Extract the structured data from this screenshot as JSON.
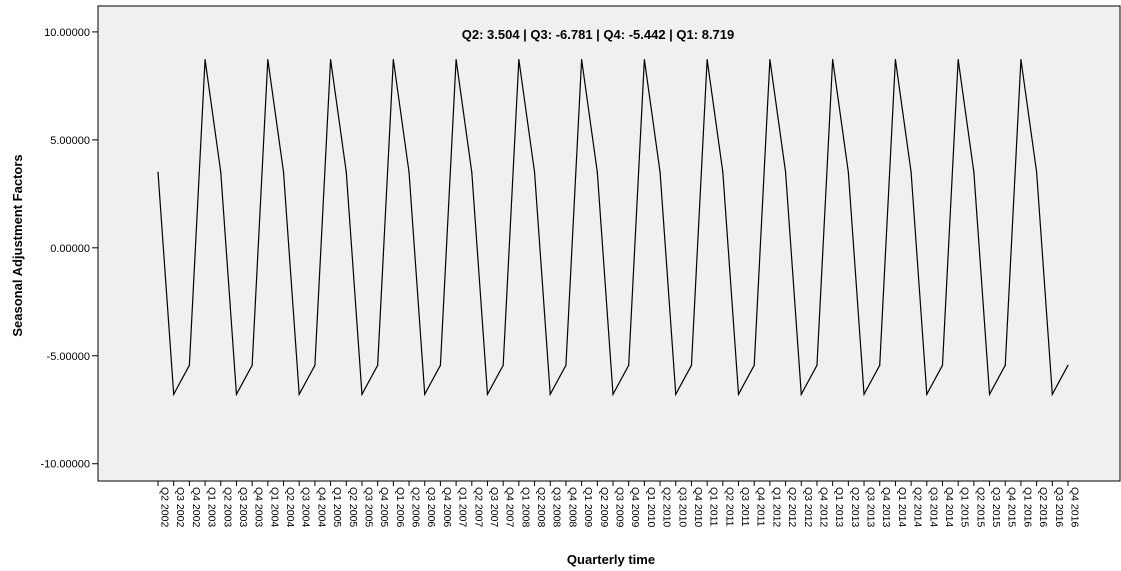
{
  "chart_data": {
    "type": "line",
    "title": "",
    "xlabel": "Quarterly time",
    "ylabel": "Seasonal Adjustment Factors",
    "annotation": "Q2: 3.504  |  Q3: -6.781  |  Q4: -5.442  |  Q1: 8.719",
    "ylim": [
      -10.8,
      11.2
    ],
    "y_ticks": [
      10.0,
      5.0,
      0.0,
      -5.0,
      -10.0
    ],
    "y_tick_labels": [
      "10.00000",
      "5.00000",
      "0.00000",
      "-5.00000",
      "-10.00000"
    ],
    "grid": false,
    "colors": {
      "plot_bg": "#f0f0f0",
      "line": "#000000",
      "axis": "#000000"
    },
    "categories": [
      "Q2 2002",
      "Q3 2002",
      "Q4 2002",
      "Q1 2003",
      "Q2 2003",
      "Q3 2003",
      "Q4 2003",
      "Q1 2004",
      "Q2 2004",
      "Q3 2004",
      "Q4 2004",
      "Q1 2005",
      "Q2 2005",
      "Q3 2005",
      "Q4 2005",
      "Q1 2006",
      "Q2 2006",
      "Q3 2006",
      "Q4 2006",
      "Q1 2007",
      "Q2 2007",
      "Q3 2007",
      "Q4 2007",
      "Q1 2008",
      "Q2 2008",
      "Q3 2008",
      "Q4 2008",
      "Q1 2009",
      "Q2 2009",
      "Q3 2009",
      "Q4 2009",
      "Q1 2010",
      "Q2 2010",
      "Q3 2010",
      "Q4 2010",
      "Q1 2011",
      "Q2 2011",
      "Q3 2011",
      "Q4 2011",
      "Q1 2012",
      "Q2 2012",
      "Q3 2012",
      "Q4 2012",
      "Q1 2013",
      "Q2 2013",
      "Q3 2013",
      "Q4 2013",
      "Q1 2014",
      "Q2 2014",
      "Q3 2014",
      "Q4 2014",
      "Q1 2015",
      "Q2 2015",
      "Q3 2015",
      "Q4 2015",
      "Q1 2016",
      "Q2 2016",
      "Q3 2016",
      "Q4 2016"
    ],
    "series": [
      {
        "values": [
          3.504,
          -6.781,
          -5.442,
          8.719,
          3.504,
          -6.781,
          -5.442,
          8.719,
          3.504,
          -6.781,
          -5.442,
          8.719,
          3.504,
          -6.781,
          -5.442,
          8.719,
          3.504,
          -6.781,
          -5.442,
          8.719,
          3.504,
          -6.781,
          -5.442,
          8.719,
          3.504,
          -6.781,
          -5.442,
          8.719,
          3.504,
          -6.781,
          -5.442,
          8.719,
          3.504,
          -6.781,
          -5.442,
          8.719,
          3.504,
          -6.781,
          -5.442,
          8.719,
          3.504,
          -6.781,
          -5.442,
          8.719,
          3.504,
          -6.781,
          -5.442,
          8.719,
          3.504,
          -6.781,
          -5.442,
          8.719,
          3.504,
          -6.781,
          -5.442,
          8.719,
          3.504,
          -6.781,
          -5.442
        ]
      }
    ]
  }
}
